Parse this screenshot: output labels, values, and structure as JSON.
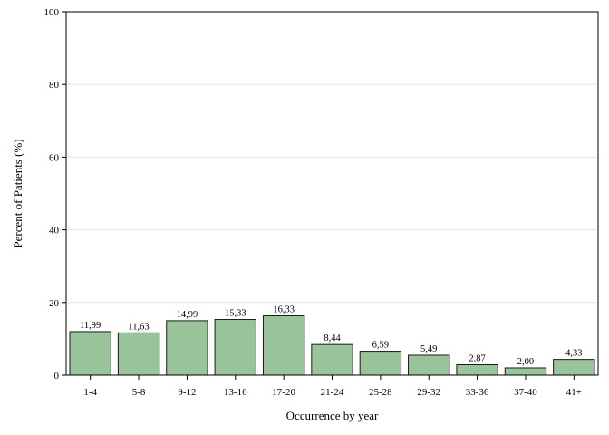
{
  "chart_data": {
    "type": "bar",
    "xlabel": "Occurrence by year",
    "ylabel": "Percent of Patients (%)",
    "ylim": [
      0,
      100
    ],
    "yticks": [
      0,
      20,
      40,
      60,
      80,
      100
    ],
    "grid": true,
    "categories": [
      "1-4",
      "5-8",
      "9-12",
      "13-16",
      "17-20",
      "21-24",
      "25-28",
      "29-32",
      "33-36",
      "37-40",
      "41+"
    ],
    "values": [
      11.99,
      11.63,
      14.99,
      15.33,
      16.33,
      8.44,
      6.59,
      5.49,
      2.87,
      2.0,
      4.33
    ],
    "value_labels": [
      "11,99",
      "11,63",
      "14,99",
      "15,33",
      "16,33",
      "8,44",
      "6,59",
      "5,49",
      "2,87",
      "2,00",
      "4,33"
    ],
    "colors": {
      "bar_fill": "#99c499",
      "bar_stroke": "#1a1a1a",
      "grid": "#e6e6e6",
      "axis": "#000000"
    }
  }
}
